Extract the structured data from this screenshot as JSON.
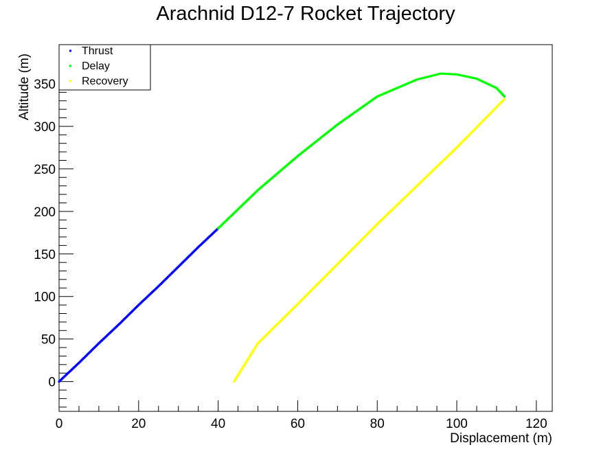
{
  "chart_data": {
    "type": "scatter",
    "title": "Arachnid D12-7 Rocket Trajectory",
    "xlabel": "Displacement (m)",
    "ylabel": "Altitude (m)",
    "xlim": [
      0,
      124
    ],
    "ylim": [
      -35,
      396
    ],
    "x_ticks": [
      0,
      20,
      40,
      60,
      80,
      100,
      120
    ],
    "y_ticks": [
      0,
      50,
      100,
      150,
      200,
      250,
      300,
      350
    ],
    "x_tick_labels": [
      "0",
      "20",
      "40",
      "60",
      "80",
      "100",
      "120"
    ],
    "y_tick_labels": [
      "0",
      "50",
      "100",
      "150",
      "200",
      "250",
      "300",
      "350"
    ],
    "legend_position": "top-left",
    "series": [
      {
        "name": "Thrust",
        "color": "#0000ff",
        "x": [
          0,
          5,
          10,
          15,
          20,
          25,
          30,
          35,
          40
        ],
        "y": [
          0,
          22,
          45,
          67,
          90,
          112,
          135,
          158,
          180
        ]
      },
      {
        "name": "Delay",
        "color": "#00ff00",
        "x": [
          40,
          50,
          60,
          70,
          80,
          90,
          96,
          100,
          105,
          110,
          112
        ],
        "y": [
          180,
          225,
          265,
          302,
          335,
          355,
          362,
          361,
          356,
          345,
          335
        ]
      },
      {
        "name": "Recovery",
        "color": "#ffff00",
        "x": [
          112,
          100,
          90,
          80,
          70,
          60,
          50,
          44
        ],
        "y": [
          332,
          275,
          230,
          185,
          138,
          91,
          45,
          0
        ]
      }
    ]
  }
}
